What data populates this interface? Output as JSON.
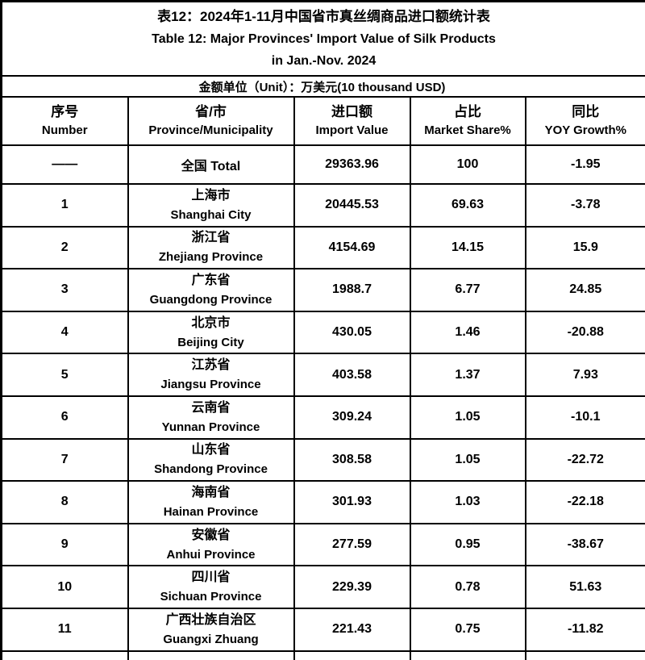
{
  "table": {
    "title_cn": "表12：2024年1-11月中国省市真丝绸商品进口额统计表",
    "title_en_line1": "Table 12: Major Provinces' Import Value of Silk Products",
    "title_en_line2": "in Jan.-Nov. 2024",
    "unit_note": "金额单位（Unit）：万美元(10 thousand USD)",
    "columns": [
      {
        "cn": "序号",
        "en": "Number"
      },
      {
        "cn": "省/市",
        "en": "Province/Municipality"
      },
      {
        "cn": "进口额",
        "en": "Import Value"
      },
      {
        "cn": "占比",
        "en": "Market Share%"
      },
      {
        "cn": "同比",
        "en": "YOY Growth%"
      }
    ],
    "total_row": {
      "number": "——",
      "province": "全国 Total",
      "import_value": "29363.96",
      "market_share": "100",
      "yoy_growth": "-1.95"
    },
    "rows": [
      {
        "number": "1",
        "province_cn": "上海市",
        "province_en": "Shanghai City",
        "import_value": "20445.53",
        "market_share": "69.63",
        "yoy_growth": "-3.78"
      },
      {
        "number": "2",
        "province_cn": "浙江省",
        "province_en": "Zhejiang Province",
        "import_value": "4154.69",
        "market_share": "14.15",
        "yoy_growth": "15.9"
      },
      {
        "number": "3",
        "province_cn": "广东省",
        "province_en": "Guangdong Province",
        "import_value": "1988.7",
        "market_share": "6.77",
        "yoy_growth": "24.85"
      },
      {
        "number": "4",
        "province_cn": "北京市",
        "province_en": "Beijing City",
        "import_value": "430.05",
        "market_share": "1.46",
        "yoy_growth": "-20.88"
      },
      {
        "number": "5",
        "province_cn": "江苏省",
        "province_en": "Jiangsu Province",
        "import_value": "403.58",
        "market_share": "1.37",
        "yoy_growth": "7.93"
      },
      {
        "number": "6",
        "province_cn": "云南省",
        "province_en": "Yunnan Province",
        "import_value": "309.24",
        "market_share": "1.05",
        "yoy_growth": "-10.1"
      },
      {
        "number": "7",
        "province_cn": "山东省",
        "province_en": "Shandong Province",
        "import_value": "308.58",
        "market_share": "1.05",
        "yoy_growth": "-22.72"
      },
      {
        "number": "8",
        "province_cn": "海南省",
        "province_en": "Hainan Province",
        "import_value": "301.93",
        "market_share": "1.03",
        "yoy_growth": "-22.18"
      },
      {
        "number": "9",
        "province_cn": "安徽省",
        "province_en": "Anhui Province",
        "import_value": "277.59",
        "market_share": "0.95",
        "yoy_growth": "-38.67"
      },
      {
        "number": "10",
        "province_cn": "四川省",
        "province_en": "Sichuan Province",
        "import_value": "229.39",
        "market_share": "0.78",
        "yoy_growth": "51.63"
      },
      {
        "number": "11",
        "province_cn": "广西壮族自治区",
        "province_en": "Guangxi Zhuang",
        "import_value": "221.43",
        "market_share": "0.75",
        "yoy_growth": "-11.82"
      }
    ]
  },
  "colors": {
    "text": "#000000",
    "border": "#000000",
    "background": "#ffffff"
  }
}
